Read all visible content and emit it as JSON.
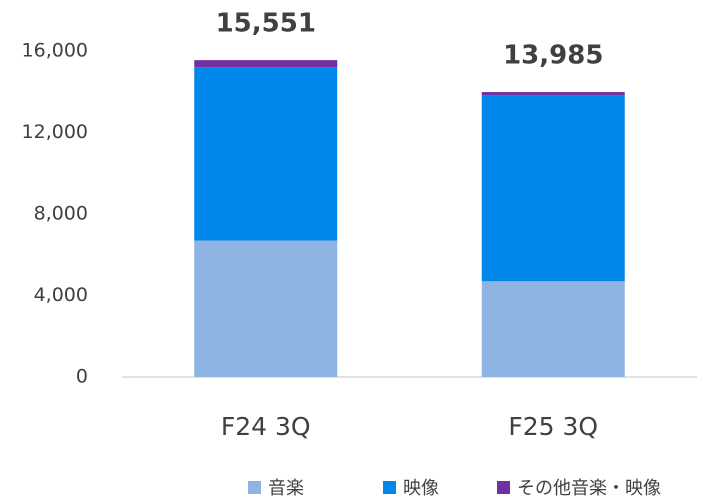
{
  "chart_data": {
    "type": "stacked_bar",
    "categories": [
      "F24 3Q",
      "F25 3Q"
    ],
    "series": [
      {
        "name": "音楽",
        "color": "#8eb4e3",
        "values": [
          6700,
          4700
        ]
      },
      {
        "name": "映像",
        "color": "#0087ea",
        "values": [
          8500,
          9135
        ]
      },
      {
        "name": "その他音楽・映像",
        "color": "#7030a0",
        "values": [
          351,
          150
        ]
      }
    ],
    "totals": [
      15551,
      13985
    ],
    "total_labels": [
      "15,551",
      "13,985"
    ],
    "ylim": [
      0,
      16000
    ],
    "yticks": [
      0,
      {
        "value": 4000,
        "label": "4,000"
      },
      {
        "value": 8000,
        "label": "8,000"
      },
      {
        "value": 12000,
        "label": "12,000"
      },
      {
        "value": 16000,
        "label": "16,000"
      }
    ],
    "grid": false,
    "legend": "bottom-right"
  }
}
